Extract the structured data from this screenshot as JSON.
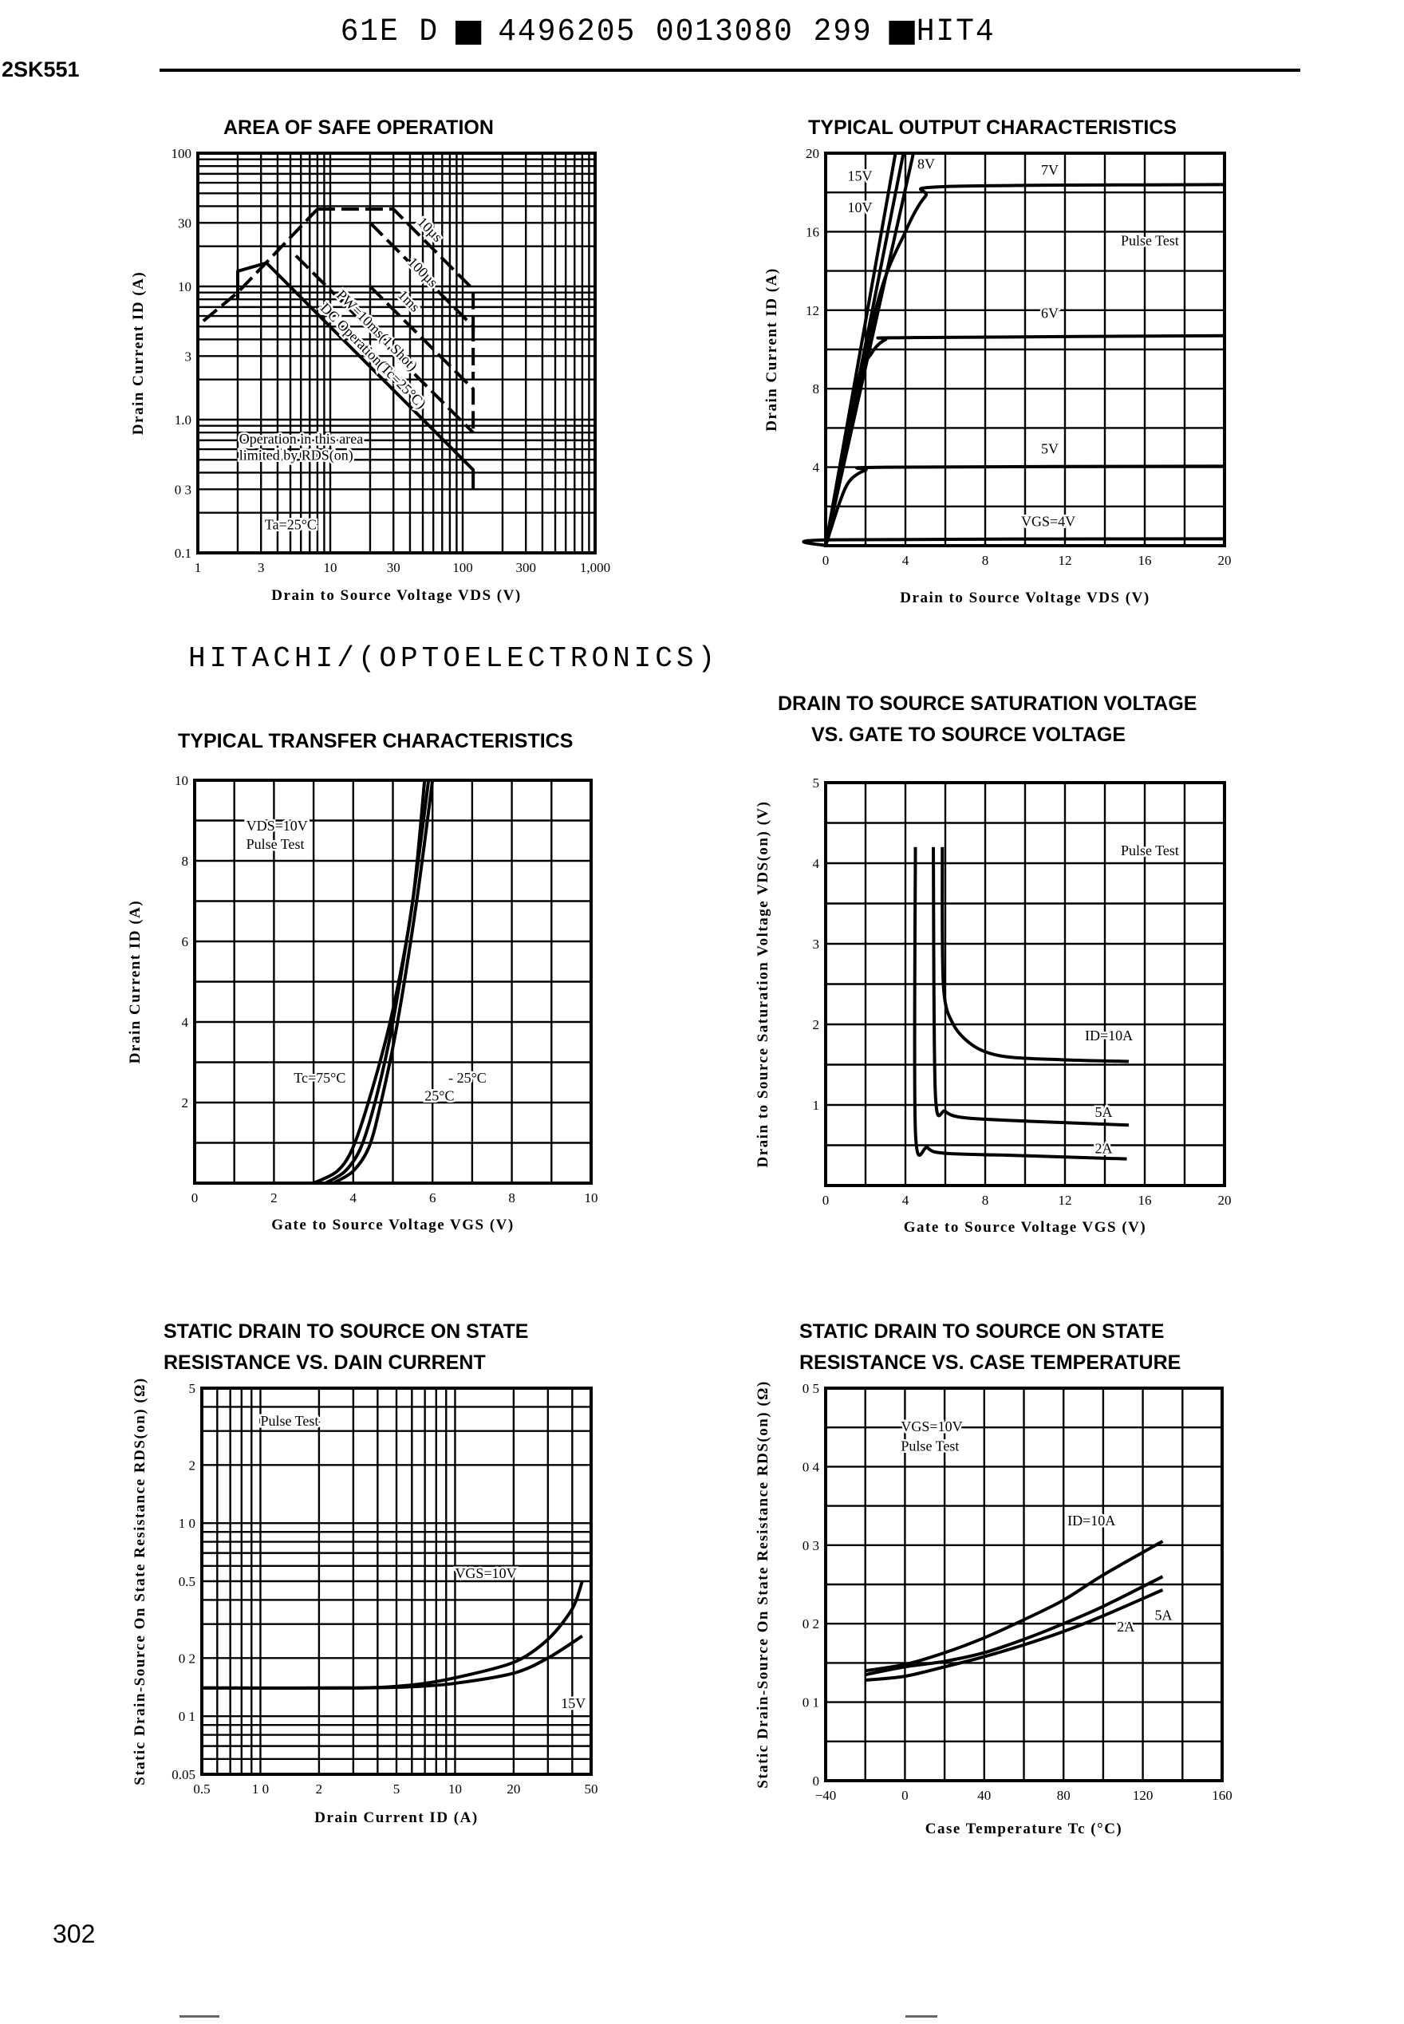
{
  "header": {
    "code1": "61E D",
    "code2": "4496205 0013080 299",
    "code3": "HIT4"
  },
  "part_number": "2SK551",
  "brand": "HITACHI/(OPTOELECTRONICS)",
  "page_number": "302",
  "chart_data": [
    {
      "type": "line",
      "title": [
        "AREA OF SAFE OPERATION"
      ],
      "xlabel": "Drain to Source Voltage VDS (V)",
      "ylabel": "Drain Current ID (A)",
      "xscale": "log",
      "yscale": "log",
      "xlim": [
        1,
        1000
      ],
      "ylim": [
        0.1,
        100
      ],
      "grid": true,
      "xticks": {
        "values": [
          1,
          3,
          10,
          30,
          100,
          300,
          1000
        ],
        "labels": [
          "1",
          "3",
          "10",
          "30",
          "100",
          "300",
          "1,000"
        ]
      },
      "yticks": {
        "values": [
          0.1,
          0.3,
          1,
          3,
          10,
          30,
          100
        ],
        "labels": [
          "0.1",
          "0 3",
          "1.0",
          "3",
          "10",
          "30",
          "100"
        ]
      },
      "series": [
        {
          "name": "RDS(on) limit",
          "dashed": true,
          "points": [
            [
              1.1,
              5.5
            ],
            [
              2,
              9
            ],
            [
              8,
              38
            ]
          ]
        },
        {
          "name": "10µs",
          "dashed": true,
          "points": [
            [
              8,
              38
            ],
            [
              30,
              38
            ],
            [
              120,
              9.5
            ],
            [
              120,
              4
            ]
          ]
        },
        {
          "name": "100µs",
          "dashed": true,
          "points": [
            [
              20,
              30
            ],
            [
              120,
              5
            ],
            [
              120,
              2
            ]
          ]
        },
        {
          "name": "1ms",
          "dashed": true,
          "points": [
            [
              20,
              10
            ],
            [
              120,
              1.7
            ],
            [
              120,
              0.8
            ]
          ]
        },
        {
          "name": "PW=10ms(1 Shot)",
          "dashed": true,
          "points": [
            [
              5.5,
              17
            ],
            [
              120,
              0.8
            ]
          ]
        },
        {
          "name": "DC Operation(Tc=25°C)",
          "dashed": false,
          "points": [
            [
              2,
              8
            ],
            [
              2,
              13
            ],
            [
              3.3,
              15
            ],
            [
              120,
              0.42
            ],
            [
              120,
              0.3
            ]
          ]
        }
      ],
      "annotations": [
        "10µs",
        "100µs",
        "PW=10ms(1 Shot)",
        "1ms",
        "DC Operation(Tc=25°C)",
        "Operation in this area",
        "limited by RDS(on)",
        "Ta=25°C"
      ]
    },
    {
      "type": "line",
      "title": [
        "TYPICAL OUTPUT CHARACTERISTICS"
      ],
      "xlabel": "Drain to Source Voltage VDS (V)",
      "ylabel": "Drain Current ID (A)",
      "xscale": "linear",
      "yscale": "linear",
      "xlim": [
        0,
        20
      ],
      "ylim": [
        0,
        20
      ],
      "grid": true,
      "xticks": {
        "values": [
          0,
          4,
          8,
          12,
          16,
          20
        ],
        "labels": [
          "0",
          "4",
          "8",
          "12",
          "16",
          "20"
        ]
      },
      "yticks": {
        "values": [
          0,
          4,
          8,
          12,
          16,
          20
        ],
        "labels": [
          "",
          "4",
          "8",
          "12",
          "16",
          "20"
        ]
      },
      "series": [
        {
          "name": "15V",
          "points": [
            [
              0,
              0
            ],
            [
              3.5,
              20
            ]
          ]
        },
        {
          "name": "10V",
          "points": [
            [
              0,
              0
            ],
            [
              3.9,
              20
            ]
          ]
        },
        {
          "name": "8V",
          "points": [
            [
              0,
              0
            ],
            [
              4.4,
              20
            ]
          ]
        },
        {
          "name": "7V",
          "points": [
            [
              0,
              0
            ],
            [
              2.5,
              12
            ],
            [
              4,
              16
            ],
            [
              5,
              17.8
            ],
            [
              6,
              18.3
            ],
            [
              20,
              18.4
            ]
          ]
        },
        {
          "name": "6V",
          "points": [
            [
              0,
              0
            ],
            [
              1.5,
              8
            ],
            [
              2.3,
              9.8
            ],
            [
              3,
              10.5
            ],
            [
              4,
              10.6
            ],
            [
              20,
              10.7
            ]
          ]
        },
        {
          "name": "5V",
          "points": [
            [
              0,
              0
            ],
            [
              0.7,
              2.2
            ],
            [
              1.2,
              3.3
            ],
            [
              2,
              3.85
            ],
            [
              3,
              4
            ],
            [
              20,
              4.05
            ]
          ]
        },
        {
          "name": "VGS=4V",
          "points": [
            [
              0,
              0
            ],
            [
              0.3,
              0.3
            ],
            [
              20,
              0.35
            ]
          ]
        }
      ],
      "annotations": [
        "15V",
        "10V",
        "8V",
        "7V",
        "6V",
        "5V",
        "VGS=4V",
        "Pulse Test"
      ]
    },
    {
      "type": "line",
      "title": [
        "TYPICAL TRANSFER CHARACTERISTICS"
      ],
      "xlabel": "Gate to Source Voltage VGS (V)",
      "ylabel": "Drain Current ID (A)",
      "xscale": "linear",
      "yscale": "linear",
      "xlim": [
        0,
        10
      ],
      "ylim": [
        0,
        10
      ],
      "grid": true,
      "xticks": {
        "values": [
          0,
          2,
          4,
          6,
          8,
          10
        ],
        "labels": [
          "0",
          "2",
          "4",
          "6",
          "8",
          "10"
        ]
      },
      "yticks": {
        "values": [
          0,
          2,
          4,
          6,
          8,
          10
        ],
        "labels": [
          "",
          "2",
          "4",
          "6",
          "8",
          "10"
        ]
      },
      "series": [
        {
          "name": "Tc=75°C",
          "points": [
            [
              3,
              0
            ],
            [
              3.6,
              0.3
            ],
            [
              4,
              0.9
            ],
            [
              4.5,
              2.4
            ],
            [
              5,
              4.3
            ],
            [
              5.5,
              7
            ],
            [
              5.8,
              10
            ]
          ]
        },
        {
          "name": "25°C",
          "points": [
            [
              3.3,
              0
            ],
            [
              3.8,
              0.3
            ],
            [
              4.2,
              0.9
            ],
            [
              4.6,
              2.2
            ],
            [
              5,
              4
            ],
            [
              5.5,
              7
            ],
            [
              5.9,
              10
            ]
          ]
        },
        {
          "name": "-25°C",
          "points": [
            [
              3.5,
              0
            ],
            [
              4,
              0.3
            ],
            [
              4.4,
              0.9
            ],
            [
              4.7,
              2
            ],
            [
              5.1,
              3.9
            ],
            [
              5.6,
              7
            ],
            [
              6,
              10
            ]
          ]
        }
      ],
      "annotations": [
        "VDS=10V",
        "Pulse Test",
        "Tc=75°C",
        "- 25°C",
        "25°C"
      ]
    },
    {
      "type": "line",
      "title": [
        "DRAIN TO SOURCE SATURATION VOLTAGE",
        "VS. GATE TO SOURCE VOLTAGE"
      ],
      "xlabel": "Gate to Source Voltage VGS (V)",
      "ylabel": "Drain to Source Saturation Voltage VDS(on) (V)",
      "xscale": "linear",
      "yscale": "linear",
      "xlim": [
        0,
        20
      ],
      "ylim": [
        0,
        5
      ],
      "grid": true,
      "xticks": {
        "values": [
          0,
          4,
          8,
          12,
          16,
          20
        ],
        "labels": [
          "0",
          "4",
          "8",
          "12",
          "16",
          "20"
        ]
      },
      "yticks": {
        "values": [
          1,
          2,
          3,
          4,
          5
        ],
        "labels": [
          "1",
          "2",
          "3",
          "4",
          "5"
        ]
      },
      "series": [
        {
          "name": "ID=10A",
          "points": [
            [
              5.85,
              4.2
            ],
            [
              5.9,
              2.5
            ],
            [
              6.4,
              2.0
            ],
            [
              7.5,
              1.72
            ],
            [
              9,
              1.6
            ],
            [
              12,
              1.56
            ],
            [
              15.2,
              1.54
            ]
          ]
        },
        {
          "name": "5A",
          "points": [
            [
              5.4,
              4.2
            ],
            [
              5.5,
              1.15
            ],
            [
              6,
              0.92
            ],
            [
              7,
              0.84
            ],
            [
              10,
              0.8
            ],
            [
              15.2,
              0.75
            ]
          ]
        },
        {
          "name": "2A",
          "points": [
            [
              4.5,
              4.2
            ],
            [
              4.5,
              0.68
            ],
            [
              5.1,
              0.47
            ],
            [
              6,
              0.4
            ],
            [
              10,
              0.37
            ],
            [
              15.1,
              0.33
            ]
          ]
        }
      ],
      "annotations": [
        "Pulse Test",
        "ID=10A",
        "5A",
        "2A"
      ]
    },
    {
      "type": "line",
      "title": [
        "STATIC DRAIN TO SOURCE ON STATE",
        "RESISTANCE VS. DAIN CURRENT"
      ],
      "xlabel": "Drain Current ID (A)",
      "ylabel": "Static Drain-Source On State Resistance RDS(on) (Ω)",
      "xscale": "log",
      "yscale": "log",
      "xlim": [
        0.5,
        50
      ],
      "ylim": [
        0.05,
        5
      ],
      "grid": true,
      "xticks": {
        "values": [
          0.5,
          1,
          2,
          5,
          10,
          20,
          50
        ],
        "labels": [
          "0.5",
          "1 0",
          "2",
          "5",
          "10",
          "20",
          "50"
        ]
      },
      "yticks": {
        "values": [
          0.05,
          0.1,
          0.2,
          0.5,
          1,
          2,
          5
        ],
        "labels": [
          "0.05",
          "0 1",
          "0 2",
          "0.5",
          "1 0",
          "2",
          "5"
        ]
      },
      "series": [
        {
          "name": "VGS=10V",
          "points": [
            [
              0.5,
              0.14
            ],
            [
              3,
              0.14
            ],
            [
              6,
              0.145
            ],
            [
              10,
              0.158
            ],
            [
              20,
              0.19
            ],
            [
              30,
              0.25
            ],
            [
              40,
              0.36
            ],
            [
              45,
              0.5
            ]
          ]
        },
        {
          "name": "15V",
          "points": [
            [
              0.5,
              0.14
            ],
            [
              3,
              0.14
            ],
            [
              6,
              0.142
            ],
            [
              10,
              0.148
            ],
            [
              20,
              0.167
            ],
            [
              30,
              0.2
            ],
            [
              45,
              0.26
            ]
          ]
        }
      ],
      "annotations": [
        "Pulse Test",
        "VGS=10V",
        "15V"
      ]
    },
    {
      "type": "line",
      "title": [
        "STATIC DRAIN TO SOURCE ON STATE",
        "RESISTANCE VS. CASE TEMPERATURE"
      ],
      "xlabel": "Case Temperature Tc (°C)",
      "ylabel": "Static Drain-Source On State Resistance RDS(on) (Ω)",
      "xscale": "linear",
      "yscale": "linear",
      "xlim": [
        -40,
        160
      ],
      "ylim": [
        0,
        0.5
      ],
      "grid": true,
      "xticks": {
        "values": [
          -40,
          0,
          40,
          80,
          120,
          160
        ],
        "labels": [
          "−40",
          "0",
          "40",
          "80",
          "120",
          "160"
        ]
      },
      "yticks": {
        "values": [
          0,
          0.1,
          0.2,
          0.3,
          0.4,
          0.5
        ],
        "labels": [
          "0",
          "0 1",
          "0 2",
          "0 3",
          "0 4",
          "0 5"
        ]
      },
      "series": [
        {
          "name": "ID=10A",
          "points": [
            [
              -20,
              0.14
            ],
            [
              0,
              0.148
            ],
            [
              20,
              0.163
            ],
            [
              40,
              0.182
            ],
            [
              60,
              0.205
            ],
            [
              80,
              0.23
            ],
            [
              100,
              0.262
            ],
            [
              130,
              0.305
            ]
          ]
        },
        {
          "name": "5A",
          "points": [
            [
              -20,
              0.135
            ],
            [
              0,
              0.145
            ],
            [
              20,
              0.152
            ],
            [
              40,
              0.163
            ],
            [
              60,
              0.18
            ],
            [
              80,
              0.2
            ],
            [
              100,
              0.222
            ],
            [
              130,
              0.26
            ]
          ]
        },
        {
          "name": "2A",
          "points": [
            [
              -20,
              0.128
            ],
            [
              0,
              0.133
            ],
            [
              20,
              0.145
            ],
            [
              40,
              0.158
            ],
            [
              60,
              0.173
            ],
            [
              80,
              0.19
            ],
            [
              100,
              0.21
            ],
            [
              130,
              0.243
            ]
          ]
        }
      ],
      "annotations": [
        "VGS=10V",
        "Pulse Test",
        "ID=10A",
        "5A",
        "2A"
      ]
    }
  ]
}
